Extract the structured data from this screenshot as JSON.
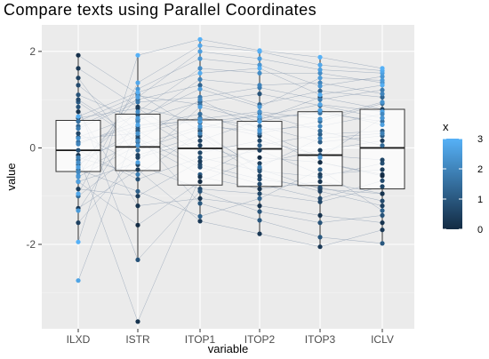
{
  "chart_data": {
    "type": "parallel-coordinates-boxplot",
    "title": "Compare texts using Parallel Coordinates",
    "xlabel": "variable",
    "ylabel": "value",
    "categories": [
      "ILXD",
      "ISTR",
      "ITOP1",
      "ITOP2",
      "ITOP3",
      "ICLV"
    ],
    "ylim": [
      -3.75,
      2.55
    ],
    "yticks": [
      -2,
      0,
      2
    ],
    "background": "#ebebeb",
    "grid": true,
    "boxes": [
      {
        "variable": "ILXD",
        "q1": -0.49,
        "median": -0.05,
        "q3": 0.57,
        "whisker_low": -1.95,
        "whisker_high": 1.92
      },
      {
        "variable": "ISTR",
        "q1": -0.47,
        "median": 0.02,
        "q3": 0.7,
        "whisker_low": -2.32,
        "whisker_high": 1.92
      },
      {
        "variable": "ITOP1",
        "q1": -0.77,
        "median": -0.01,
        "q3": 0.58,
        "whisker_low": -1.52,
        "whisker_high": 2.25
      },
      {
        "variable": "ITOP2",
        "q1": -0.8,
        "median": -0.02,
        "q3": 0.55,
        "whisker_low": -1.8,
        "whisker_high": 2.02
      },
      {
        "variable": "ITOP3",
        "q1": -0.78,
        "median": -0.15,
        "q3": 0.75,
        "whisker_low": -2.05,
        "whisker_high": 1.88
      },
      {
        "variable": "ICLV",
        "q1": -0.85,
        "median": 0.0,
        "q3": 0.8,
        "whisker_low": -1.98,
        "whisker_high": 1.65
      }
    ],
    "color_scale": {
      "title": "x",
      "min": 0,
      "max": 3,
      "ticks": [
        0,
        1,
        2,
        3
      ],
      "low_color": "#132b43",
      "high_color": "#56b1f7"
    },
    "lines": [
      {
        "x": 0.1,
        "values": [
          1.92,
          1.12,
          0.35,
          -0.44,
          -0.85,
          -0.95
        ]
      },
      {
        "x": 0.3,
        "values": [
          1.65,
          0.85,
          0.53,
          0.25,
          -0.3,
          -0.55
        ]
      },
      {
        "x": 0.5,
        "values": [
          1.45,
          -0.2,
          0.15,
          0.58,
          1.05,
          0.8
        ]
      },
      {
        "x": 0.7,
        "values": [
          1.3,
          0.35,
          -0.35,
          -0.65,
          -0.82,
          -1.1
        ]
      },
      {
        "x": 0.9,
        "values": [
          1.1,
          0.58,
          0.95,
          1.12,
          0.88,
          0.62
        ]
      },
      {
        "x": 1.1,
        "values": [
          0.95,
          0.12,
          -0.55,
          0.05,
          0.28,
          0.35
        ]
      },
      {
        "x": 0.2,
        "values": [
          0.75,
          -1.2,
          -1.05,
          -1.2,
          -1.4,
          -1.55
        ]
      },
      {
        "x": 0.4,
        "values": [
          0.62,
          0.82,
          0.05,
          -0.32,
          -0.05,
          0.15
        ]
      },
      {
        "x": 1.3,
        "values": [
          0.45,
          1.0,
          1.3,
          0.9,
          1.18,
          1.05
        ]
      },
      {
        "x": 0.6,
        "values": [
          0.3,
          -0.35,
          -0.85,
          -0.95,
          -1.12,
          -0.8
        ]
      },
      {
        "x": 1.5,
        "values": [
          0.12,
          0.45,
          0.7,
          0.3,
          0.55,
          0.92
        ]
      },
      {
        "x": 0.8,
        "values": [
          -0.05,
          -0.65,
          -0.2,
          -0.48,
          -0.6,
          -0.32
        ]
      },
      {
        "x": 1.0,
        "values": [
          -0.25,
          0.25,
          -1.15,
          -1.5,
          -1.85,
          -1.98
        ]
      },
      {
        "x": 1.2,
        "values": [
          -0.45,
          -0.9,
          -1.42,
          -1.05,
          -0.45,
          -1.3
        ]
      },
      {
        "x": 0.0,
        "values": [
          -0.7,
          -1.6,
          -0.7,
          -0.2,
          -0.3,
          -0.58
        ]
      },
      {
        "x": 1.4,
        "values": [
          -1.0,
          -0.05,
          0.4,
          0.72,
          0.35,
          0.05
        ]
      },
      {
        "x": 0.3,
        "values": [
          -1.25,
          -0.45,
          -1.52,
          -1.78,
          -2.05,
          -1.7
        ]
      },
      {
        "x": 0.5,
        "values": [
          -1.55,
          -0.15,
          0.25,
          -0.58,
          -0.9,
          -1.2
        ]
      },
      {
        "x": 0.9,
        "values": [
          0.85,
          -2.32,
          -0.9,
          -1.32,
          -1.55,
          -1.4
        ]
      },
      {
        "x": 0.2,
        "values": [
          -0.15,
          -3.6,
          -0.6,
          -0.85,
          -0.7,
          -0.95
        ]
      },
      {
        "x": 0.6,
        "values": [
          0.22,
          0.68,
          -0.1,
          0.15,
          -0.15,
          -0.25
        ]
      },
      {
        "x": 1.1,
        "values": [
          -0.35,
          0.4,
          0.62,
          0.45,
          0.12,
          0.25
        ]
      },
      {
        "x": 0.7,
        "values": [
          1.0,
          0.2,
          -0.4,
          -0.75,
          -1.05,
          -0.68
        ]
      },
      {
        "x": 1.6,
        "values": [
          0.55,
          1.08,
          0.9,
          0.62,
          0.72,
          0.55
        ]
      },
      {
        "x": 0.4,
        "values": [
          -0.85,
          -1.0,
          -0.28,
          -0.05,
          -0.55,
          -0.45
        ]
      },
      {
        "x": 1.8,
        "values": [
          0.4,
          0.95,
          1.05,
          1.25,
          1.0,
          1.2
        ]
      },
      {
        "x": 2.0,
        "values": [
          0.08,
          0.55,
          1.42,
          1.3,
          1.35,
          1.12
        ]
      },
      {
        "x": 2.2,
        "values": [
          -0.3,
          0.75,
          1.65,
          1.55,
          1.55,
          1.35
        ]
      },
      {
        "x": 2.4,
        "values": [
          -0.58,
          1.22,
          1.85,
          1.72,
          1.28,
          1.48
        ]
      },
      {
        "x": 2.6,
        "values": [
          -0.4,
          1.05,
          2.0,
          1.85,
          1.62,
          1.55
        ]
      },
      {
        "x": 2.8,
        "values": [
          -0.95,
          1.35,
          2.12,
          2.0,
          1.72,
          1.6
        ]
      },
      {
        "x": 3.0,
        "values": [
          -1.95,
          1.92,
          2.25,
          2.02,
          1.88,
          1.65
        ]
      },
      {
        "x": 2.5,
        "values": [
          -1.3,
          0.62,
          1.22,
          0.85,
          1.45,
          1.4
        ]
      },
      {
        "x": 2.7,
        "values": [
          -2.75,
          0.48,
          0.55,
          0.65,
          0.9,
          0.75
        ]
      },
      {
        "x": 2.3,
        "values": [
          0.2,
          0.3,
          0.6,
          0.75,
          0.6,
          0.95
        ]
      },
      {
        "x": 2.1,
        "values": [
          -0.5,
          0.15,
          1.0,
          0.38,
          0.45,
          0.7
        ]
      },
      {
        "x": 2.9,
        "values": [
          0.65,
          1.15,
          1.55,
          1.65,
          1.1,
          1.3
        ]
      },
      {
        "x": 2.6,
        "values": [
          -0.7,
          -0.3,
          0.85,
          0.55,
          0.78,
          0.48
        ]
      },
      {
        "x": 2.4,
        "values": [
          -0.6,
          0.05,
          0.45,
          0.35,
          -0.2,
          0.62
        ]
      },
      {
        "x": 1.9,
        "values": [
          -0.2,
          -0.55,
          0.3,
          -0.4,
          0.2,
          0.3
        ]
      }
    ]
  }
}
